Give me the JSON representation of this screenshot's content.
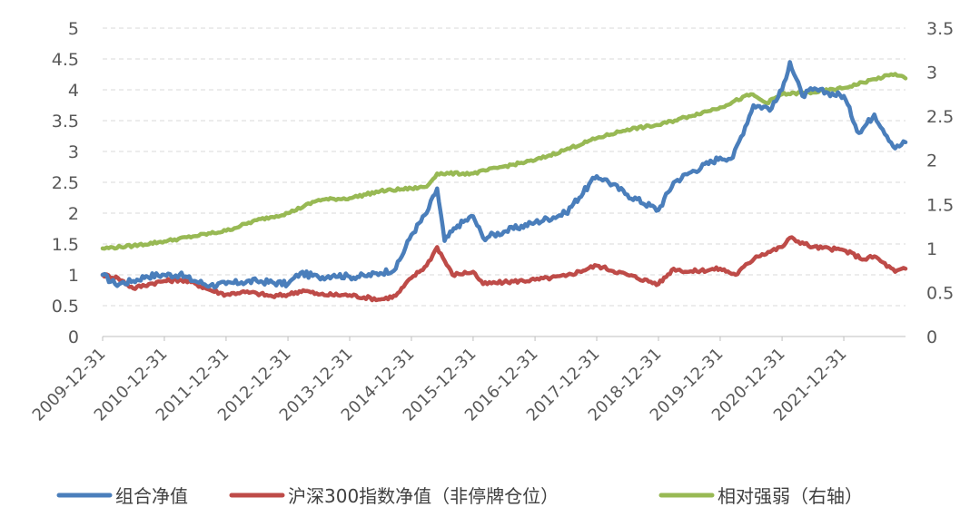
{
  "chart_data": {
    "type": "line",
    "title": "",
    "xlabel": "",
    "ylabel": "",
    "x_tick_labels": [
      "2009-12-31",
      "2010-12-31",
      "2011-12-31",
      "2012-12-31",
      "2013-12-31",
      "2014-12-31",
      "2015-12-31",
      "2016-12-31",
      "2017-12-31",
      "2018-12-31",
      "2019-12-31",
      "2020-12-31",
      "2021-12-31"
    ],
    "x_range": [
      "2009-12-31",
      "2022-12-31"
    ],
    "y_left": {
      "min": 0,
      "max": 5,
      "ticks": [
        "0",
        "0.5",
        "1",
        "1.5",
        "2",
        "2.5",
        "3",
        "3.5",
        "4",
        "4.5",
        "5"
      ]
    },
    "y_right": {
      "min": 0,
      "max": 3.5,
      "ticks": [
        "0",
        "0.5",
        "1",
        "1.5",
        "2",
        "2.5",
        "3",
        "3.5"
      ]
    },
    "grid": true,
    "legend_position": "bottom",
    "series": [
      {
        "name": "组合净值",
        "axis": "left",
        "color": "#4a7ebb",
        "points": [
          [
            "2009-12-31",
            1.0
          ],
          [
            "2010-03-15",
            0.85
          ],
          [
            "2010-06-30",
            0.9
          ],
          [
            "2010-09-15",
            0.98
          ],
          [
            "2010-12-31",
            1.0
          ],
          [
            "2011-03-31",
            1.0
          ],
          [
            "2011-06-30",
            0.9
          ],
          [
            "2011-09-30",
            0.83
          ],
          [
            "2011-12-31",
            0.85
          ],
          [
            "2012-03-31",
            0.88
          ],
          [
            "2012-06-30",
            0.9
          ],
          [
            "2012-12-31",
            0.85
          ],
          [
            "2013-03-15",
            1.03
          ],
          [
            "2013-06-30",
            0.96
          ],
          [
            "2013-09-30",
            1.0
          ],
          [
            "2013-12-31",
            0.97
          ],
          [
            "2014-03-31",
            0.98
          ],
          [
            "2014-06-30",
            1.03
          ],
          [
            "2014-09-30",
            1.1
          ],
          [
            "2014-12-31",
            1.65
          ],
          [
            "2015-03-31",
            2.0
          ],
          [
            "2015-06-01",
            2.4
          ],
          [
            "2015-07-15",
            1.55
          ],
          [
            "2015-09-30",
            1.8
          ],
          [
            "2015-12-31",
            1.95
          ],
          [
            "2016-02-28",
            1.6
          ],
          [
            "2016-06-30",
            1.7
          ],
          [
            "2016-12-31",
            1.85
          ],
          [
            "2017-06-30",
            2.0
          ],
          [
            "2017-12-31",
            2.6
          ],
          [
            "2018-02-15",
            2.55
          ],
          [
            "2018-06-30",
            2.3
          ],
          [
            "2018-12-31",
            2.05
          ],
          [
            "2019-03-31",
            2.5
          ],
          [
            "2019-06-30",
            2.65
          ],
          [
            "2019-12-31",
            2.9
          ],
          [
            "2020-03-15",
            2.9
          ],
          [
            "2020-07-15",
            3.75
          ],
          [
            "2020-10-31",
            3.7
          ],
          [
            "2020-12-31",
            4.0
          ],
          [
            "2021-02-15",
            4.45
          ],
          [
            "2021-04-30",
            3.9
          ],
          [
            "2021-06-30",
            4.0
          ],
          [
            "2021-09-30",
            3.95
          ],
          [
            "2021-12-31",
            3.9
          ],
          [
            "2022-03-31",
            3.3
          ],
          [
            "2022-06-30",
            3.6
          ],
          [
            "2022-10-31",
            3.05
          ],
          [
            "2022-12-31",
            3.15
          ]
        ]
      },
      {
        "name": "沪深300指数净值（非停牌仓位）",
        "axis": "left",
        "color": "#be4b48",
        "points": [
          [
            "2009-12-31",
            1.0
          ],
          [
            "2010-03-31",
            0.95
          ],
          [
            "2010-06-30",
            0.78
          ],
          [
            "2010-09-30",
            0.85
          ],
          [
            "2010-12-31",
            0.9
          ],
          [
            "2011-03-31",
            0.92
          ],
          [
            "2011-06-30",
            0.86
          ],
          [
            "2011-09-30",
            0.75
          ],
          [
            "2011-12-31",
            0.68
          ],
          [
            "2012-03-31",
            0.72
          ],
          [
            "2012-06-30",
            0.7
          ],
          [
            "2012-09-30",
            0.65
          ],
          [
            "2012-12-31",
            0.68
          ],
          [
            "2013-03-31",
            0.75
          ],
          [
            "2013-06-30",
            0.68
          ],
          [
            "2013-12-31",
            0.67
          ],
          [
            "2014-06-30",
            0.6
          ],
          [
            "2014-09-30",
            0.66
          ],
          [
            "2014-12-31",
            0.95
          ],
          [
            "2015-03-31",
            1.15
          ],
          [
            "2015-06-01",
            1.45
          ],
          [
            "2015-08-31",
            1.0
          ],
          [
            "2015-12-31",
            1.05
          ],
          [
            "2016-02-28",
            0.85
          ],
          [
            "2016-06-30",
            0.88
          ],
          [
            "2016-12-31",
            0.92
          ],
          [
            "2017-06-30",
            0.98
          ],
          [
            "2017-12-31",
            1.15
          ],
          [
            "2018-06-30",
            1.0
          ],
          [
            "2018-12-31",
            0.85
          ],
          [
            "2019-03-31",
            1.1
          ],
          [
            "2019-06-30",
            1.05
          ],
          [
            "2019-12-31",
            1.1
          ],
          [
            "2020-03-31",
            1.0
          ],
          [
            "2020-07-31",
            1.3
          ],
          [
            "2020-12-31",
            1.45
          ],
          [
            "2021-02-15",
            1.6
          ],
          [
            "2021-06-30",
            1.45
          ],
          [
            "2021-12-31",
            1.4
          ],
          [
            "2022-04-30",
            1.25
          ],
          [
            "2022-06-30",
            1.3
          ],
          [
            "2022-10-31",
            1.05
          ],
          [
            "2022-12-31",
            1.1
          ]
        ]
      },
      {
        "name": "相对强弱（右轴）",
        "axis": "right",
        "color": "#98b954",
        "points": [
          [
            "2009-12-31",
            1.0
          ],
          [
            "2010-06-30",
            1.03
          ],
          [
            "2010-12-31",
            1.08
          ],
          [
            "2011-06-30",
            1.14
          ],
          [
            "2011-12-31",
            1.2
          ],
          [
            "2012-06-30",
            1.32
          ],
          [
            "2012-12-31",
            1.4
          ],
          [
            "2013-06-30",
            1.55
          ],
          [
            "2013-12-31",
            1.57
          ],
          [
            "2014-06-30",
            1.65
          ],
          [
            "2014-12-31",
            1.68
          ],
          [
            "2015-03-31",
            1.7
          ],
          [
            "2015-06-01",
            1.85
          ],
          [
            "2015-12-31",
            1.85
          ],
          [
            "2016-06-30",
            1.93
          ],
          [
            "2016-12-31",
            2.0
          ],
          [
            "2017-06-30",
            2.12
          ],
          [
            "2017-12-31",
            2.25
          ],
          [
            "2018-06-30",
            2.35
          ],
          [
            "2018-12-31",
            2.4
          ],
          [
            "2019-06-30",
            2.5
          ],
          [
            "2019-12-31",
            2.6
          ],
          [
            "2020-06-30",
            2.75
          ],
          [
            "2020-09-30",
            2.65
          ],
          [
            "2020-12-31",
            2.75
          ],
          [
            "2021-06-30",
            2.77
          ],
          [
            "2021-12-31",
            2.82
          ],
          [
            "2022-06-30",
            2.92
          ],
          [
            "2022-10-31",
            2.98
          ],
          [
            "2022-12-31",
            2.93
          ]
        ]
      }
    ]
  }
}
